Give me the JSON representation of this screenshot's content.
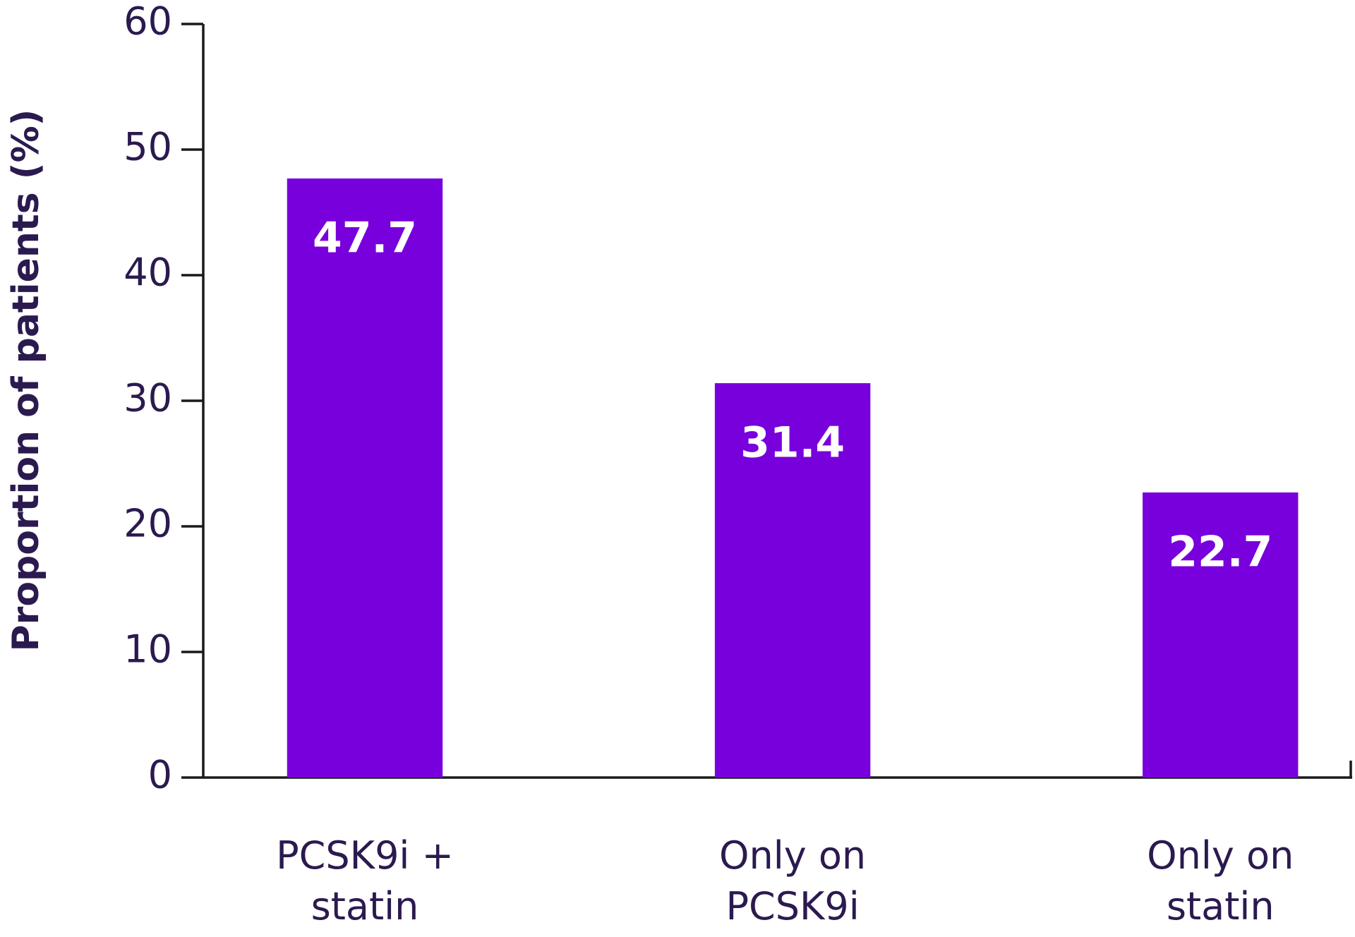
{
  "chart_data": {
    "type": "bar",
    "y_label": "Proportion of patients (%)",
    "categories": [
      "PCSK9i +\nstatin",
      "Only on\nPCSK9i",
      "Only on\nstatin"
    ],
    "values": [
      47.7,
      31.4,
      22.7
    ],
    "color": "#7800dc",
    "ylim": [
      0,
      60
    ],
    "yticks": [
      0,
      10,
      20,
      30,
      40,
      50,
      60
    ],
    "grid": false
  }
}
